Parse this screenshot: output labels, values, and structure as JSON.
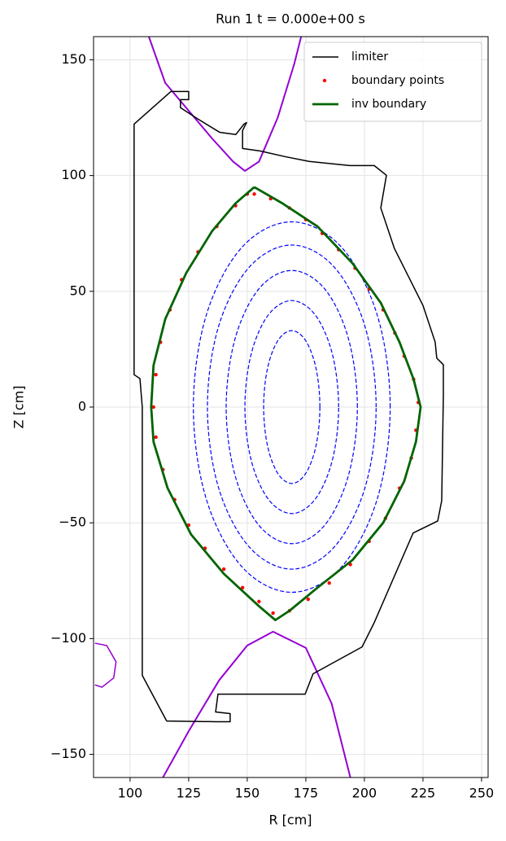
{
  "chart_data": {
    "type": "line",
    "title": "Run 1  t = 0.000e+00 s",
    "x_label": "R [cm]",
    "y_label": "Z [cm]",
    "xlim": [
      84.4,
      252.8
    ],
    "ylim": [
      -160,
      160
    ],
    "xticks": [
      100,
      125,
      150,
      175,
      200,
      225,
      250
    ],
    "yticks": [
      {
        "value": -150,
        "label": "−150"
      },
      {
        "value": -100,
        "label": "−100"
      },
      {
        "value": -50,
        "label": "−50"
      },
      0,
      50,
      100,
      150
    ],
    "grid": true,
    "legend": "upper right",
    "series": [
      {
        "color": "#0000ff",
        "style": "dashed",
        "x": [
          181,
          179.4,
          175,
          169,
          163,
          158.6,
          157,
          158.6,
          163,
          169,
          175,
          179.4
        ],
        "y": [
          0,
          16.5,
          28.6,
          33,
          28.6,
          16.5,
          0,
          -16.5,
          -28.6,
          -33,
          -28.6,
          -16.5
        ]
      },
      {
        "color": "#0000ff",
        "style": "dashed",
        "x": [
          189,
          186.3,
          179,
          169,
          159,
          151.7,
          149,
          151.7,
          159,
          169,
          179,
          186.3
        ],
        "y": [
          0,
          23,
          39.8,
          46,
          39.8,
          23,
          0,
          -23,
          -39.8,
          -46,
          -39.8,
          -23
        ]
      },
      {
        "color": "#0000ff",
        "style": "dashed",
        "x": [
          197,
          193.2,
          183,
          169,
          155,
          144.8,
          141,
          144.8,
          155,
          169,
          183,
          193.2
        ],
        "y": [
          0,
          29.5,
          51.1,
          59,
          51.1,
          29.5,
          0,
          -29.5,
          -51.1,
          -59,
          -51.1,
          -29.5
        ]
      },
      {
        "color": "#0000ff",
        "style": "dashed",
        "x": [
          205,
          200.2,
          187,
          169,
          151,
          137.8,
          133,
          137.8,
          151,
          169,
          187,
          200.2
        ],
        "y": [
          0,
          35,
          60.6,
          70,
          60.6,
          35,
          0,
          -35,
          -60.6,
          -70,
          -60.6,
          -35
        ]
      },
      {
        "color": "#0000ff",
        "style": "dashed",
        "x": [
          211,
          205.4,
          190,
          169,
          148,
          132.6,
          127,
          132.6,
          148,
          169,
          190,
          205.4
        ],
        "y": [
          0,
          40,
          69.3,
          80,
          69.3,
          40,
          0,
          -40,
          -69.3,
          -80,
          -69.3,
          -40
        ]
      },
      {
        "color": "#9400d3",
        "style": "open",
        "x": [
          108,
          115,
          125,
          135,
          144,
          149,
          155,
          163,
          170,
          173
        ],
        "y": [
          160,
          140,
          128,
          116,
          106,
          102,
          106,
          125,
          148,
          160
        ]
      },
      {
        "color": "#9400d3",
        "style": "open",
        "x": [
          114,
          125,
          138,
          150,
          161,
          175,
          186,
          194
        ],
        "y": [
          -160,
          -140,
          -118,
          -103,
          -97,
          -104,
          -128,
          -160
        ]
      },
      {
        "color": "#9400d3",
        "style": "solid",
        "x": [
          85,
          90,
          94,
          93,
          88,
          85
        ],
        "y": [
          -102,
          -103,
          -110,
          -117,
          -121,
          -120
        ]
      },
      {
        "name": "limiter",
        "color": "#000000",
        "style": "solid",
        "x": [
          117.4,
          125,
          125,
          121.5,
          121.5,
          128.5,
          138.2,
          145.1,
          148.6,
          149.7,
          148,
          148,
          155.6,
          166,
          176.4,
          193.8,
          204.2,
          209.4,
          207,
          212.8,
          225,
          230.2,
          230.9,
          233.7,
          233.7,
          233,
          231.3,
          220.8,
          204.2,
          199,
          178.1,
          174.7,
          137.5,
          136.5,
          142.7,
          142.7,
          136.5,
          115.6,
          105.2,
          105.2,
          104.2,
          101.7,
          101.7
        ],
        "y": [
          136.3,
          136.3,
          132.8,
          132.8,
          129.3,
          124.7,
          118.7,
          117.7,
          122.2,
          122.9,
          119.4,
          111.7,
          110.6,
          108.2,
          106.1,
          104.3,
          104.3,
          100.1,
          86,
          68.5,
          43.9,
          28.1,
          21.1,
          18.3,
          5.3,
          -40.4,
          -49.2,
          -54.4,
          -93.1,
          -103.6,
          -115.2,
          -124,
          -124,
          -131.7,
          -132.4,
          -135.9,
          -135.9,
          -135.6,
          -115.9,
          0,
          12.3,
          14,
          122.2
        ]
      },
      {
        "name": "boundary points",
        "color": "#ff0000",
        "style": "markers",
        "x": [
          153,
          160,
          168,
          175,
          182,
          189,
          196,
          202,
          208,
          213,
          217,
          221,
          223,
          222,
          220,
          215,
          209,
          202,
          194,
          185,
          176,
          168,
          161,
          155,
          148,
          140,
          132,
          125,
          119,
          114,
          111,
          110,
          111,
          113,
          117,
          122,
          129,
          137,
          145,
          150
        ],
        "y": [
          92,
          90,
          86,
          81,
          75,
          68,
          60,
          51,
          42,
          32,
          22,
          12,
          2,
          -10,
          -22,
          -35,
          -48,
          -58,
          -68,
          -76,
          -83,
          -88,
          -89,
          -84,
          -78,
          -70,
          -61,
          -51,
          -40,
          -27,
          -13,
          0,
          14,
          28,
          42,
          55,
          67,
          78,
          87,
          92
        ]
      },
      {
        "name": "inv boundary",
        "color": "#006400",
        "style": "thick",
        "x": [
          153,
          165,
          180,
          195,
          207,
          215,
          221,
          224,
          222,
          217,
          208,
          195,
          180,
          168,
          162,
          155,
          140,
          126,
          116,
          110,
          109,
          110,
          115,
          124,
          135,
          145,
          153
        ],
        "y": [
          95,
          88,
          78,
          62,
          45,
          28,
          12,
          0,
          -15,
          -32,
          -50,
          -66,
          -78,
          -88,
          -92,
          -86,
          -72,
          -55,
          -35,
          -15,
          0,
          18,
          38,
          58,
          76,
          88,
          95
        ]
      }
    ]
  }
}
